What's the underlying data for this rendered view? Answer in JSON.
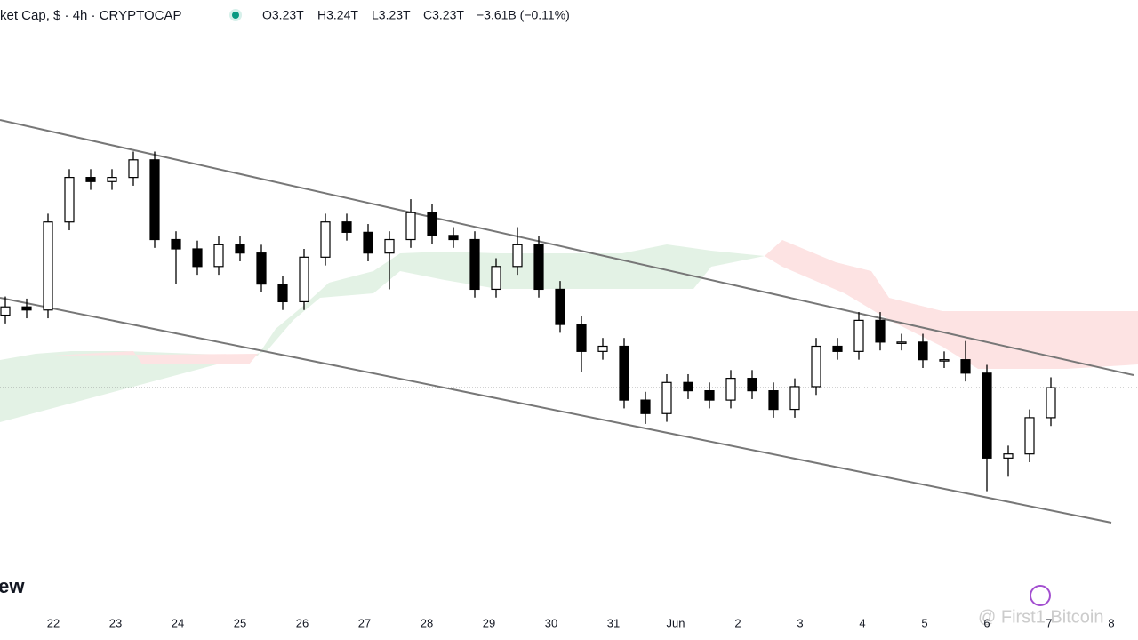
{
  "chart_data": {
    "type": "candlestick",
    "header": {
      "symbol": "ket Cap, $ · 4h · CRYPTOCAP",
      "open": "O3.23T",
      "high": "H3.24T",
      "low": "L3.23T",
      "close": "C3.23T",
      "change": "−3.61B (−0.11%)"
    },
    "x_labels": [
      "22",
      "23",
      "24",
      "25",
      "26",
      "27",
      "28",
      "29",
      "30",
      "31",
      "Jun",
      "2",
      "3",
      "4",
      "5",
      "6",
      "7",
      "8"
    ],
    "open": [
      3.3,
      3.308,
      3.305,
      3.39,
      3.433,
      3.429,
      3.433,
      3.45,
      3.373,
      3.364,
      3.347,
      3.368,
      3.36,
      3.33,
      3.313,
      3.356,
      3.39,
      3.38,
      3.36,
      3.373,
      3.399,
      3.377,
      3.373,
      3.325,
      3.347,
      3.368,
      3.325,
      3.291,
      3.265,
      3.27,
      3.218,
      3.205,
      3.235,
      3.227,
      3.218,
      3.239,
      3.227,
      3.209,
      3.231,
      3.27,
      3.265,
      3.295,
      3.274,
      3.274,
      3.257,
      3.257,
      3.244,
      3.162,
      3.166,
      3.201
    ],
    "high": [
      3.318,
      3.316,
      3.398,
      3.441,
      3.441,
      3.441,
      3.458,
      3.458,
      3.381,
      3.372,
      3.376,
      3.376,
      3.368,
      3.338,
      3.364,
      3.398,
      3.398,
      3.388,
      3.381,
      3.412,
      3.407,
      3.385,
      3.381,
      3.355,
      3.385,
      3.376,
      3.333,
      3.299,
      3.278,
      3.278,
      3.226,
      3.243,
      3.243,
      3.235,
      3.247,
      3.247,
      3.235,
      3.239,
      3.278,
      3.278,
      3.303,
      3.303,
      3.282,
      3.282,
      3.265,
      3.275,
      3.252,
      3.174,
      3.209,
      3.24
    ],
    "low": [
      3.292,
      3.297,
      3.297,
      3.382,
      3.421,
      3.421,
      3.425,
      3.365,
      3.33,
      3.339,
      3.339,
      3.352,
      3.322,
      3.305,
      3.305,
      3.348,
      3.372,
      3.352,
      3.325,
      3.365,
      3.369,
      3.365,
      3.317,
      3.317,
      3.339,
      3.317,
      3.283,
      3.245,
      3.257,
      3.21,
      3.195,
      3.197,
      3.219,
      3.21,
      3.21,
      3.219,
      3.201,
      3.201,
      3.223,
      3.257,
      3.257,
      3.266,
      3.266,
      3.249,
      3.249,
      3.236,
      3.13,
      3.144,
      3.158,
      3.193
    ],
    "close": [
      3.308,
      3.305,
      3.39,
      3.433,
      3.429,
      3.433,
      3.45,
      3.373,
      3.364,
      3.347,
      3.368,
      3.36,
      3.33,
      3.313,
      3.356,
      3.39,
      3.38,
      3.36,
      3.373,
      3.399,
      3.377,
      3.373,
      3.325,
      3.347,
      3.368,
      3.325,
      3.291,
      3.265,
      3.27,
      3.218,
      3.205,
      3.235,
      3.227,
      3.218,
      3.239,
      3.227,
      3.209,
      3.231,
      3.27,
      3.265,
      3.295,
      3.274,
      3.274,
      3.257,
      3.257,
      3.244,
      3.162,
      3.166,
      3.201,
      3.23
    ],
    "ylim": [
      3.055,
      3.57
    ],
    "up_color": "#ffffff",
    "down_color": "#000000",
    "watermarks": [
      "iew",
      "@ First1 Bitcoin"
    ]
  }
}
